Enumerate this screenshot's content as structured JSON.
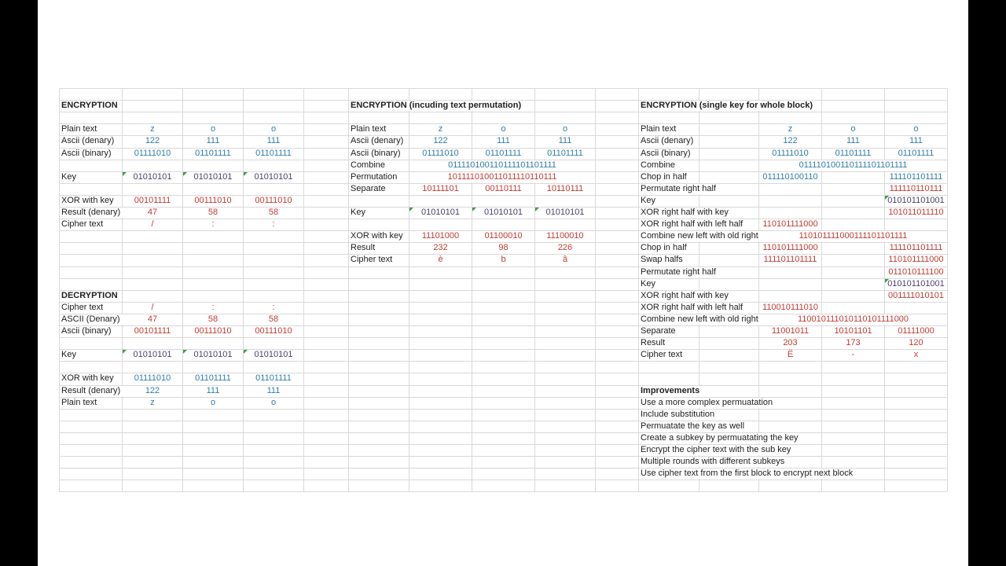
{
  "colors": {
    "background": "#ffffff",
    "letterbox": "#000000",
    "gridline": "#d9d9d9",
    "text": "#212121",
    "blue": "#2e7cab",
    "red": "#c13b32",
    "purple": "#4c3f70",
    "green": "#3c9e46"
  },
  "sheet": {
    "sections": [
      {
        "name": "encryption-basic",
        "label_col": "A",
        "value_cols": [
          "B",
          "C",
          "D"
        ],
        "rows": [
          {
            "r": 2,
            "label": "ENCRYPTION",
            "bold": true
          },
          {
            "r": 4,
            "label": "Plain text",
            "color": "blue",
            "values": [
              "z",
              "o",
              "o"
            ]
          },
          {
            "r": 5,
            "label": "Ascii (denary)",
            "color": "blue",
            "values": [
              "122",
              "111",
              "111"
            ]
          },
          {
            "r": 6,
            "label": "Ascii (binary)",
            "color": "blue",
            "values": [
              "01111010",
              "01101111",
              "01101111"
            ]
          },
          {
            "r": 8,
            "label": "Key",
            "color": "purple",
            "values": [
              "01010101",
              "01010101",
              "01010101"
            ],
            "flags": [
              "B",
              "C",
              "D"
            ]
          },
          {
            "r": 10,
            "label": "XOR with key",
            "color": "red",
            "values": [
              "00101111",
              "00111010",
              "00111010"
            ]
          },
          {
            "r": 11,
            "label": "Result (denary)",
            "color": "red",
            "values": [
              "47",
              "58",
              "58"
            ]
          },
          {
            "r": 12,
            "label": "Cipher text",
            "color": "red",
            "values": [
              "/",
              ":",
              ":"
            ]
          }
        ]
      },
      {
        "name": "decryption",
        "label_col": "A",
        "value_cols": [
          "B",
          "C",
          "D"
        ],
        "rows": [
          {
            "r": 18,
            "label": "DECRYPTION",
            "bold": true
          },
          {
            "r": 19,
            "label": "Cipher text",
            "color": "red",
            "values": [
              "/",
              ":",
              ":"
            ]
          },
          {
            "r": 20,
            "label": "ASCII (Denary)",
            "color": "red",
            "values": [
              "47",
              "58",
              "58"
            ]
          },
          {
            "r": 21,
            "label": "Ascii (binary)",
            "color": "red",
            "values": [
              "00101111",
              "00111010",
              "00111010"
            ]
          },
          {
            "r": 23,
            "label": "Key",
            "color": "purple",
            "values": [
              "01010101",
              "01010101",
              "01010101"
            ],
            "flags": [
              "B",
              "C",
              "D"
            ]
          },
          {
            "r": 25,
            "label": "XOR with key",
            "color": "blue",
            "values": [
              "01111010",
              "01101111",
              "01101111"
            ]
          },
          {
            "r": 26,
            "label": "Result (denary)",
            "color": "blue",
            "values": [
              "122",
              "111",
              "111"
            ]
          },
          {
            "r": 27,
            "label": "Plain text",
            "color": "blue",
            "values": [
              "z",
              "o",
              "o"
            ]
          }
        ]
      },
      {
        "name": "encryption-permutation",
        "label_col": "F",
        "value_cols": [
          "G",
          "H",
          "I"
        ],
        "rows": [
          {
            "r": 2,
            "label": "ENCRYPTION (incuding text permutation)",
            "bold": true
          },
          {
            "r": 4,
            "label": "Plain text",
            "color": "blue",
            "values": [
              "z",
              "o",
              "o"
            ]
          },
          {
            "r": 5,
            "label": "Ascii (denary)",
            "color": "blue",
            "values": [
              "122",
              "111",
              "111"
            ]
          },
          {
            "r": 6,
            "label": "Ascii (binary)",
            "color": "blue",
            "values": [
              "01111010",
              "01101111",
              "01101111"
            ]
          },
          {
            "r": 7,
            "label": "Combine",
            "color": "blue",
            "merge": {
              "from": "G",
              "to": "I",
              "text": "011110100110111101101111"
            }
          },
          {
            "r": 8,
            "label": "Permutation",
            "color": "red",
            "merge": {
              "from": "G",
              "to": "I",
              "text": "101111010011011110110111"
            }
          },
          {
            "r": 9,
            "label": "Separate",
            "color": "red",
            "values": [
              "10111101",
              "00110111",
              "10110111"
            ]
          },
          {
            "r": 11,
            "label": "Key",
            "color": "purple",
            "values": [
              "01010101",
              "01010101",
              "01010101"
            ],
            "flags": [
              "G",
              "H",
              "I"
            ]
          },
          {
            "r": 13,
            "label": "XOR with key",
            "color": "red",
            "values": [
              "11101000",
              "01100010",
              "11100010"
            ]
          },
          {
            "r": 14,
            "label": "Result",
            "color": "red",
            "values": [
              "232",
              "98",
              "226"
            ]
          },
          {
            "r": 15,
            "label": "Cipher text",
            "color": "red",
            "values": [
              "è",
              "b",
              "â"
            ]
          }
        ]
      },
      {
        "name": "encryption-single-key",
        "label_col": "K",
        "value_cols": [
          "L",
          "M",
          "N"
        ],
        "rows": [
          {
            "r": 2,
            "label": "ENCRYPTION (single key for whole block)",
            "bold": true
          },
          {
            "r": 4,
            "label": "Plain text",
            "color": "blue",
            "values": [
              "z",
              "o",
              "o"
            ]
          },
          {
            "r": 5,
            "label": "Ascii (denary)",
            "color": "blue",
            "values": [
              "122",
              "111",
              "111"
            ]
          },
          {
            "r": 6,
            "label": "Ascii (binary)",
            "color": "blue",
            "values": [
              "01111010",
              "01101111",
              "01101111"
            ]
          },
          {
            "r": 7,
            "label": "Combine",
            "color": "blue",
            "merge": {
              "from": "L",
              "to": "N",
              "text": "011110100110111101101111"
            }
          },
          {
            "r": 8,
            "label": "Chop in half",
            "color": "blue",
            "cells": [
              {
                "c": "L",
                "t": "011110100110"
              },
              {
                "c": "N",
                "t": "111101101111"
              }
            ]
          },
          {
            "r": 9,
            "label": "Permutate right half",
            "color": "red",
            "cells": [
              {
                "c": "N",
                "t": "111110110111"
              }
            ]
          },
          {
            "r": 10,
            "label": "Key",
            "color": "purple",
            "cells": [
              {
                "c": "N",
                "t": "010101101001"
              }
            ],
            "flags": [
              "N"
            ]
          },
          {
            "r": 11,
            "label": "XOR right half with key",
            "color": "red",
            "cells": [
              {
                "c": "N",
                "t": "101011011110"
              }
            ]
          },
          {
            "r": 12,
            "label": "XOR right half with left half",
            "color": "red",
            "cells": [
              {
                "c": "L",
                "t": "110101111000"
              }
            ]
          },
          {
            "r": 13,
            "label": "Combine new left with old right",
            "color": "red",
            "merge": {
              "from": "L",
              "to": "N",
              "text": "110101111000111101101111"
            }
          },
          {
            "r": 14,
            "label": "Chop in half",
            "color": "red",
            "cells": [
              {
                "c": "L",
                "t": "110101111000"
              },
              {
                "c": "N",
                "t": "111101101111"
              }
            ]
          },
          {
            "r": 15,
            "label": "Swap halfs",
            "color": "red",
            "cells": [
              {
                "c": "L",
                "t": "111101101111"
              },
              {
                "c": "N",
                "t": "110101111000"
              }
            ]
          },
          {
            "r": 16,
            "label": "Permutate right half",
            "color": "red",
            "cells": [
              {
                "c": "N",
                "t": "011010111100"
              }
            ]
          },
          {
            "r": 17,
            "label": "Key",
            "color": "purple",
            "cells": [
              {
                "c": "N",
                "t": "010101101001"
              }
            ],
            "flags": [
              "N"
            ]
          },
          {
            "r": 18,
            "label": "XOR right half with key",
            "color": "red",
            "cells": [
              {
                "c": "N",
                "t": "001111010101"
              }
            ]
          },
          {
            "r": 19,
            "label": "XOR right half with left half",
            "color": "red",
            "cells": [
              {
                "c": "L",
                "t": "110010111010"
              }
            ]
          },
          {
            "r": 20,
            "label": "Combine new left with old right",
            "color": "red",
            "merge": {
              "from": "L",
              "to": "N",
              "text": "110010111010110101111000"
            }
          },
          {
            "r": 21,
            "label": "Separate",
            "color": "red",
            "values": [
              "11001011",
              "10101101",
              "01111000"
            ]
          },
          {
            "r": 22,
            "label": "Result",
            "color": "red",
            "values": [
              "203",
              "173",
              "120"
            ]
          },
          {
            "r": 23,
            "label": "Cipher text",
            "color": "red",
            "values": [
              "Ë",
              "-",
              "x"
            ]
          }
        ]
      },
      {
        "name": "improvements",
        "label_col": "K",
        "value_cols": [],
        "rows": [
          {
            "r": 26,
            "label": "Improvements",
            "bold": true
          },
          {
            "r": 27,
            "label": "Use a more complex permuatation"
          },
          {
            "r": 28,
            "label": "Include substitution"
          },
          {
            "r": 29,
            "label": "Permuatate the key as well"
          },
          {
            "r": 30,
            "label": "Create a subkey by permuatating the key"
          },
          {
            "r": 31,
            "label": "Encrypt the cipher text with the sub key"
          },
          {
            "r": 32,
            "label": "Multiple rounds with different subkeys"
          },
          {
            "r": 33,
            "label": "Use cipher text from the first block to encrypt next block"
          }
        ]
      }
    ]
  }
}
